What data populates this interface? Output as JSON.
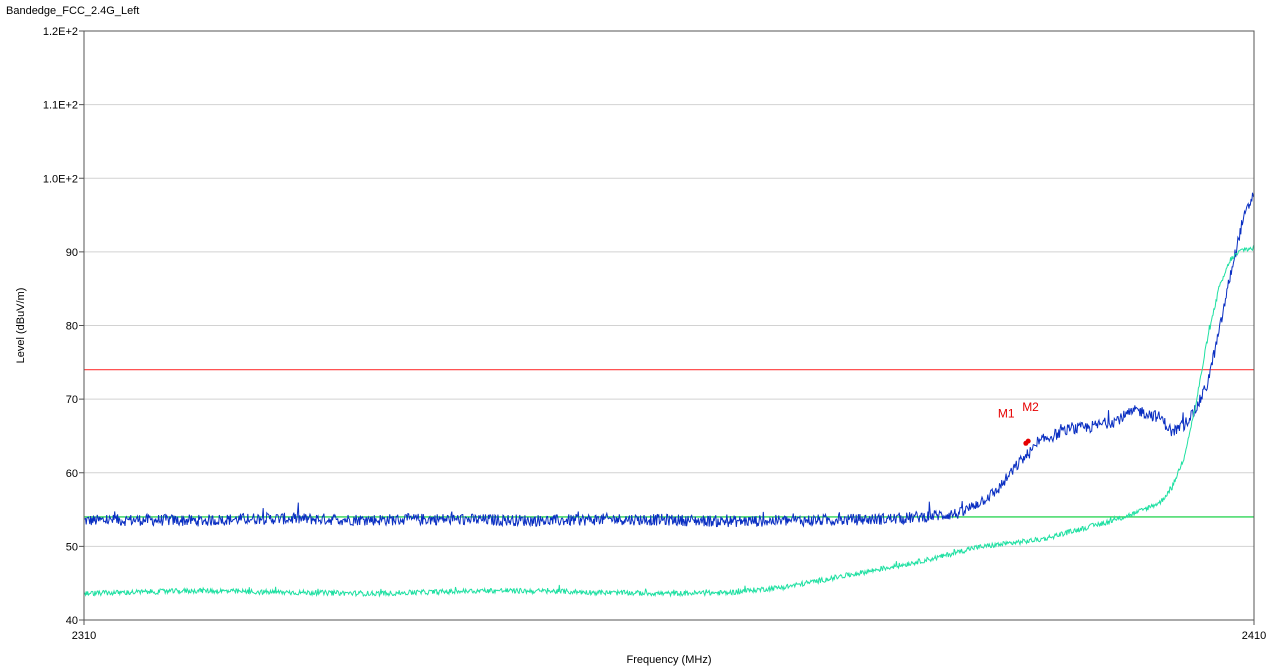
{
  "chart_data": {
    "type": "line",
    "title": "Bandedge_FCC_2.4G_Left",
    "xlabel": "Frequency (MHz)",
    "ylabel": "Level (dBuV/m)",
    "xlim": [
      2310,
      2410
    ],
    "ylim": [
      40,
      120
    ],
    "x_tick_labels": [
      {
        "value": 2310,
        "label": "2310"
      },
      {
        "value": 2410,
        "label": "2410"
      }
    ],
    "y_tick_labels": [
      {
        "value": 120,
        "label": "1.2E+2"
      },
      {
        "value": 110,
        "label": "1.1E+2"
      },
      {
        "value": 100,
        "label": "1.0E+2"
      },
      {
        "value": 90,
        "label": "90"
      },
      {
        "value": 80,
        "label": "80"
      },
      {
        "value": 70,
        "label": "70"
      },
      {
        "value": 60,
        "label": "60"
      },
      {
        "value": 50,
        "label": "50"
      },
      {
        "value": 40,
        "label": "40"
      }
    ],
    "grid": "horizontal",
    "limit_lines": [
      {
        "value": 74,
        "color": "#ff3b3b"
      },
      {
        "value": 54,
        "color": "#00cc33"
      }
    ],
    "series": [
      {
        "color": "#0a2fc2",
        "x": [
          2310,
          2315,
          2320,
          2325,
          2330,
          2335,
          2340,
          2345,
          2350,
          2355,
          2360,
          2365,
          2370,
          2375,
          2380,
          2385,
          2388,
          2390,
          2392,
          2394,
          2396,
          2398,
          2400,
          2402,
          2403,
          2404,
          2405,
          2406,
          2407,
          2408,
          2409,
          2410
        ],
        "y": [
          53.5,
          53.6,
          53.5,
          53.8,
          53.7,
          53.6,
          53.7,
          53.6,
          53.5,
          53.7,
          53.6,
          53.4,
          53.5,
          53.6,
          53.8,
          54.5,
          57.5,
          61.5,
          64.5,
          65.8,
          66.2,
          67.0,
          68.5,
          67.5,
          65.5,
          66.5,
          68.5,
          72.0,
          79.0,
          87.0,
          94.0,
          98.0
        ],
        "noise": 0.8
      },
      {
        "color": "#1fe0a2",
        "x": [
          2310,
          2315,
          2320,
          2325,
          2330,
          2335,
          2340,
          2345,
          2350,
          2355,
          2360,
          2365,
          2370,
          2375,
          2380,
          2383,
          2386,
          2389,
          2392,
          2395,
          2398,
          2400,
          2402,
          2403,
          2404,
          2405,
          2406,
          2407,
          2408,
          2409,
          2410
        ],
        "y": [
          43.6,
          43.8,
          44.0,
          43.8,
          43.7,
          43.6,
          43.8,
          44.0,
          43.9,
          43.7,
          43.6,
          43.7,
          44.5,
          46.0,
          47.5,
          48.5,
          49.8,
          50.4,
          51.0,
          52.3,
          53.5,
          54.6,
          56.0,
          58.0,
          62.0,
          69.0,
          78.0,
          85.0,
          89.0,
          90.3,
          90.5
        ],
        "noise": 0.35
      }
    ],
    "markers": [
      {
        "label": "M1",
        "x": 2390.5,
        "y": 64.0,
        "color": "#e60000"
      },
      {
        "label": "M2",
        "x": 2390.7,
        "y": 64.3,
        "color": "#e60000"
      }
    ]
  }
}
